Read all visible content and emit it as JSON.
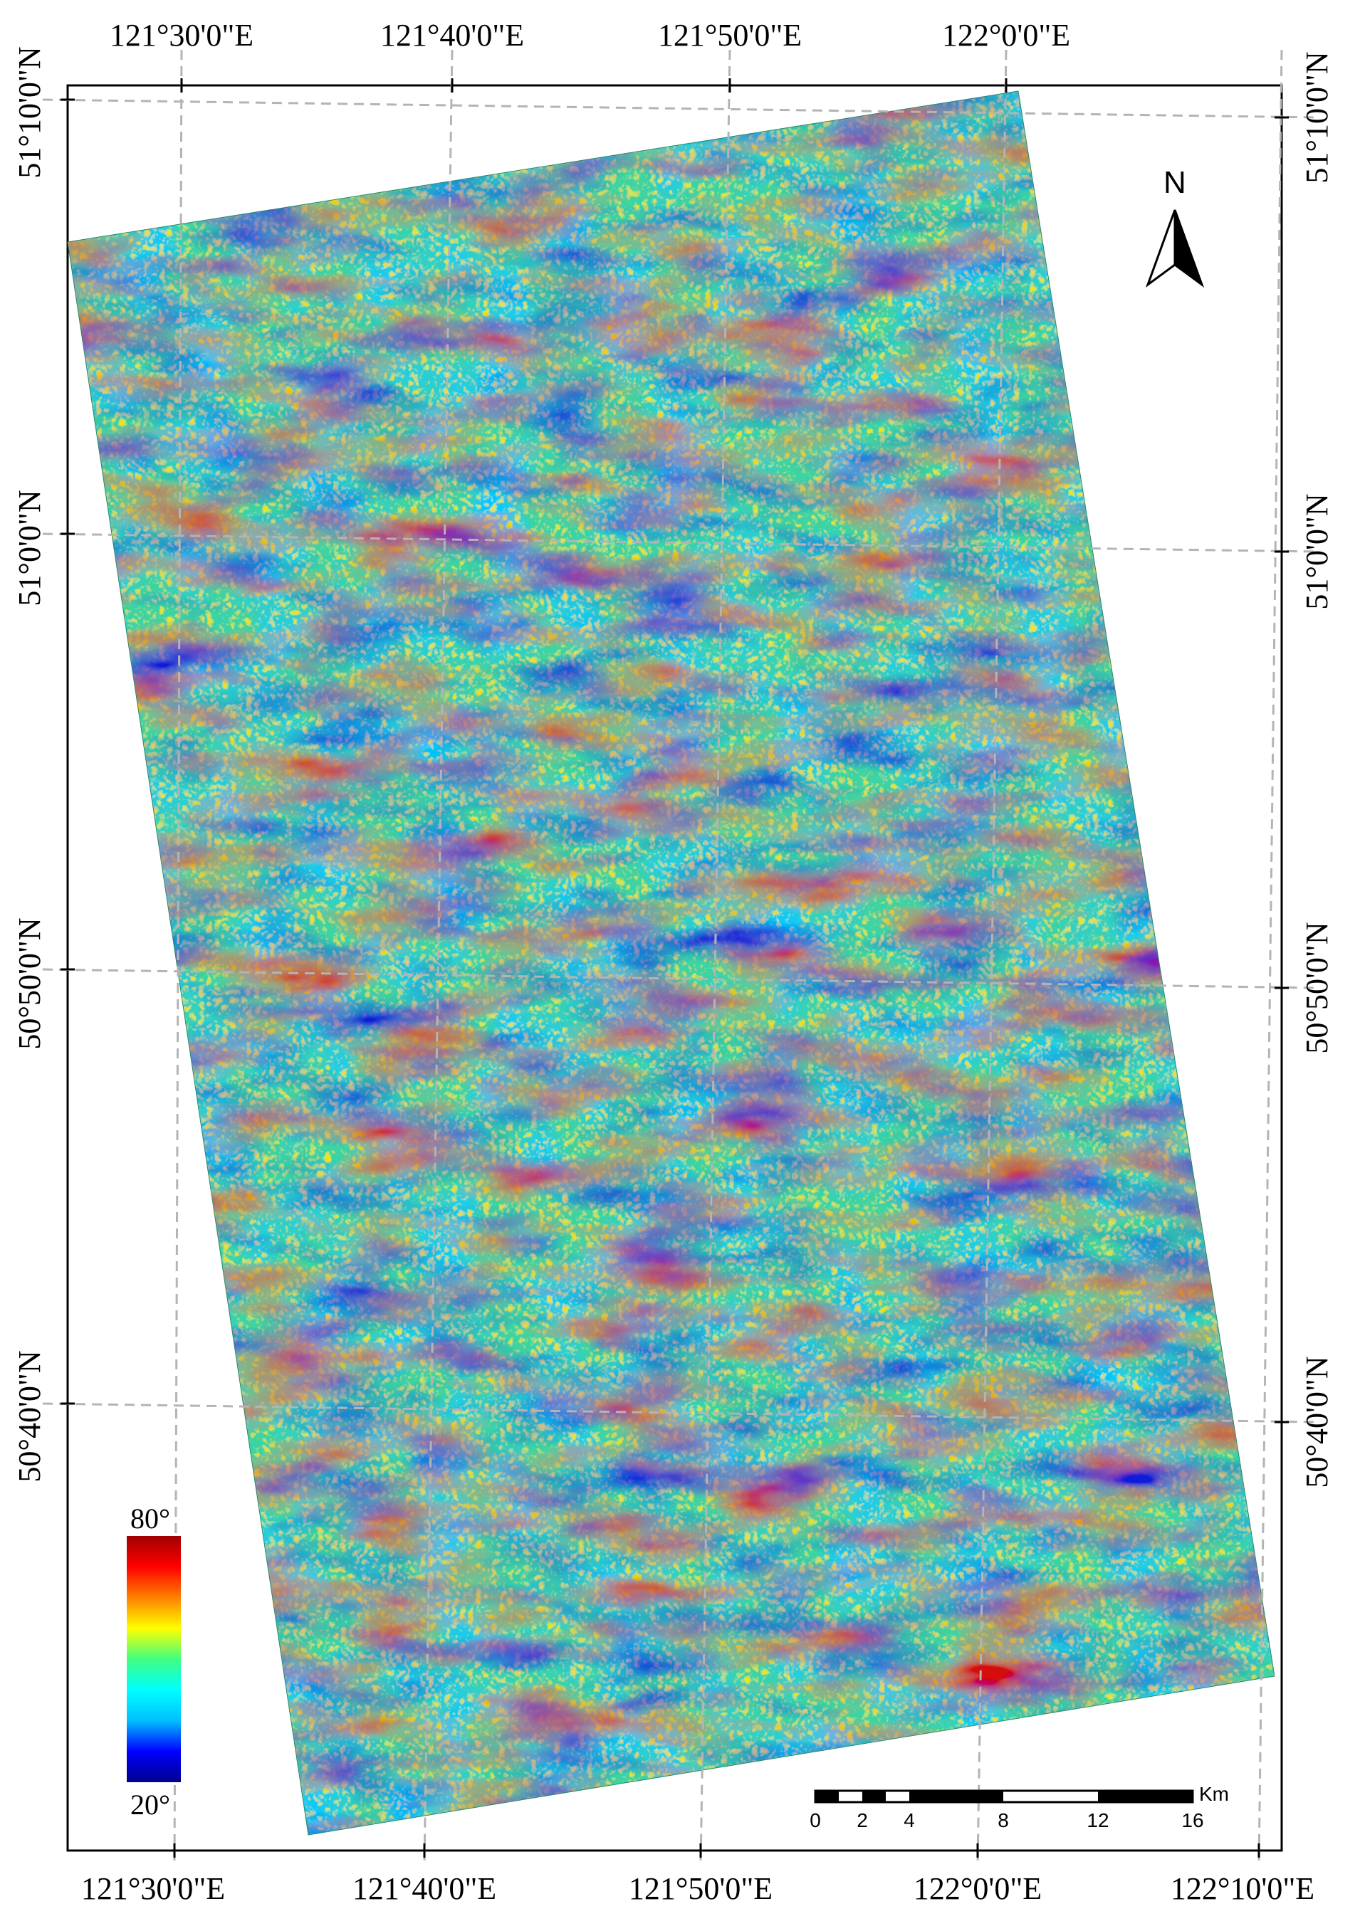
{
  "map": {
    "lon_labels_top": [
      "121°30'0\"E",
      "121°40'0\"E",
      "121°50'0\"E",
      "122°0'0\"E"
    ],
    "lon_labels_bottom": [
      "121°30'0\"E",
      "121°40'0\"E",
      "121°50'0\"E",
      "122°0'0\"E",
      "122°10'0\"E"
    ],
    "lat_labels_left": [
      "51°10'0\"N",
      "51°0'0\"N",
      "50°50'0\"N",
      "50°40'0\"N"
    ],
    "lat_labels_right": [
      "51°10'0\"N",
      "51°0'0\"N",
      "50°50'0\"N",
      "50°40'0\"N"
    ]
  },
  "legend": {
    "max_label": "80°",
    "min_label": "20°",
    "colors": [
      "#00008b",
      "#0000ff",
      "#00bfff",
      "#00ffff",
      "#40ff80",
      "#ffff00",
      "#ff8000",
      "#ff0000",
      "#a00000"
    ]
  },
  "north_arrow": {
    "label": "N"
  },
  "scale_bar": {
    "unit": "Km",
    "ticks": [
      "0",
      "2",
      "4",
      "8",
      "12",
      "16"
    ]
  },
  "colors": {
    "grid": "#b4b4b4",
    "frame": "#000000"
  }
}
